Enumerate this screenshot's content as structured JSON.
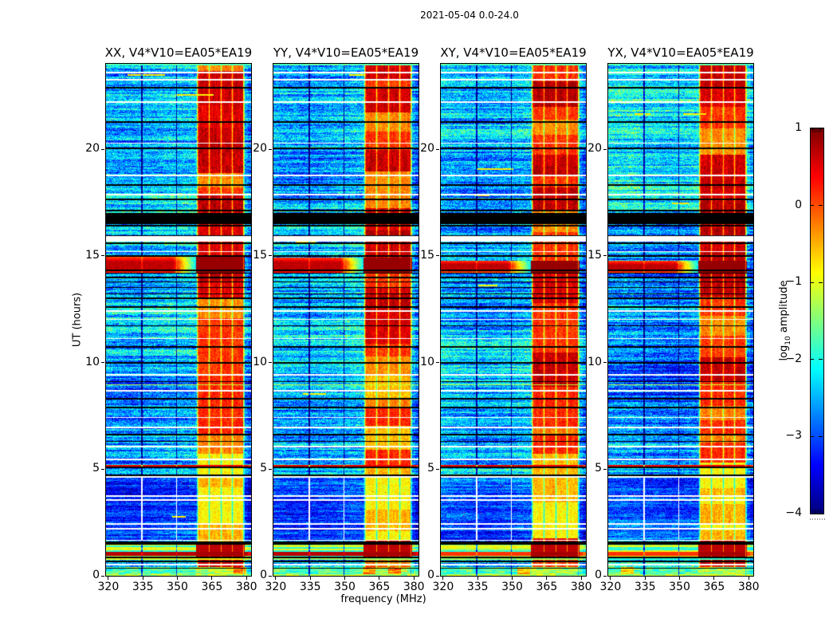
{
  "chart_data": {
    "type": "heatmap",
    "title": "2021-05-04 0.0-24.0",
    "xlabel": "frequency (MHz)",
    "ylabel": "UT (hours)",
    "x_axis": {
      "label": "frequency (MHz)",
      "range_mhz": [
        319,
        382
      ],
      "ticks": [
        320,
        335,
        350,
        365,
        380
      ]
    },
    "y_axis": {
      "label": "UT (hours)",
      "range_hours": [
        0,
        24
      ],
      "ticks": [
        0,
        5,
        10,
        15,
        20
      ]
    },
    "colorbar": {
      "label_prefix": "log",
      "label_sub": "10",
      "label_suffix": " amplitude",
      "range": [
        -4,
        1
      ],
      "ticks": [
        1,
        0,
        -1,
        -2,
        -3,
        -4
      ],
      "colormap": "jet"
    },
    "panels": [
      {
        "title": "XX, V4*V10=EA05*EA19",
        "pol": "xx",
        "seed": 11,
        "crosshand": false,
        "red_band_ut": [
          14.15,
          14.95
        ]
      },
      {
        "title": "YY, V4*V10=EA05*EA19",
        "pol": "yy",
        "seed": 29,
        "crosshand": false,
        "red_band_ut": [
          14.15,
          14.9
        ]
      },
      {
        "title": "XY, V4*V10=EA05*EA19",
        "pol": "xy",
        "seed": 47,
        "crosshand": true,
        "red_band_ut": [
          14.22,
          14.78
        ]
      },
      {
        "title": "YX, V4*V10=EA05*EA19",
        "pol": "yx",
        "seed": 63,
        "crosshand": true,
        "red_band_ut": [
          14.22,
          14.75
        ]
      }
    ],
    "features": {
      "background_level_log10": -2.45,
      "quiet_band_ut": [
        1.7,
        4.65
      ],
      "quiet_level_log10": -2.95,
      "rfi_band_mhz": [
        358.2,
        379.3
      ],
      "rfi_gap_channels_mhz": [
        363.9,
        369.0,
        373.9
      ],
      "flagged_channels_mhz": [
        334.6,
        349.7
      ],
      "narrow_gap_channel_mhz": 378.85,
      "rfi_strong_ut": [
        [
          9.35,
          24.0
        ],
        [
          0.0,
          1.7
        ]
      ],
      "rfi_medium_ut": [
        [
          5.25,
          9.35
        ]
      ],
      "rfi_weak_ut": [
        [
          1.7,
          5.25
        ]
      ],
      "black_band_ut": [
        16.5,
        17.02
      ],
      "white_band_ut": [
        15.65,
        15.92
      ],
      "dark_red_row_ut": [
        0.93,
        1.12
      ],
      "bottom_active_ut": [
        0.75,
        1.62
      ],
      "bottom_edge_ut": [
        0.0,
        0.42
      ],
      "thin_red_line_ut": 5.15,
      "faint_orange_line_ut": 8.95,
      "white_lines_ut": [
        23.58,
        23.25,
        22.2,
        20.28,
        18.78,
        17.87,
        15.2,
        12.42,
        12.02,
        11.12,
        9.42,
        8.67,
        7.42,
        6.95,
        6.06,
        5.46,
        4.63,
        3.74,
        3.54,
        2.43,
        2.2,
        1.66,
        0.52
      ],
      "black_lines_ut": [
        22.88,
        21.27,
        20.04,
        18.32,
        17.64,
        17.12,
        16.42,
        15.95,
        15.58,
        15.0,
        14.32,
        14.18,
        13.98,
        13.78,
        13.52,
        13.22,
        13.0,
        12.6,
        11.72,
        10.72,
        9.98,
        9.1,
        8.3,
        7.88,
        6.62,
        6.3,
        5.08,
        4.7,
        1.57,
        1.5,
        0.85,
        0.68,
        0.35
      ]
    }
  }
}
